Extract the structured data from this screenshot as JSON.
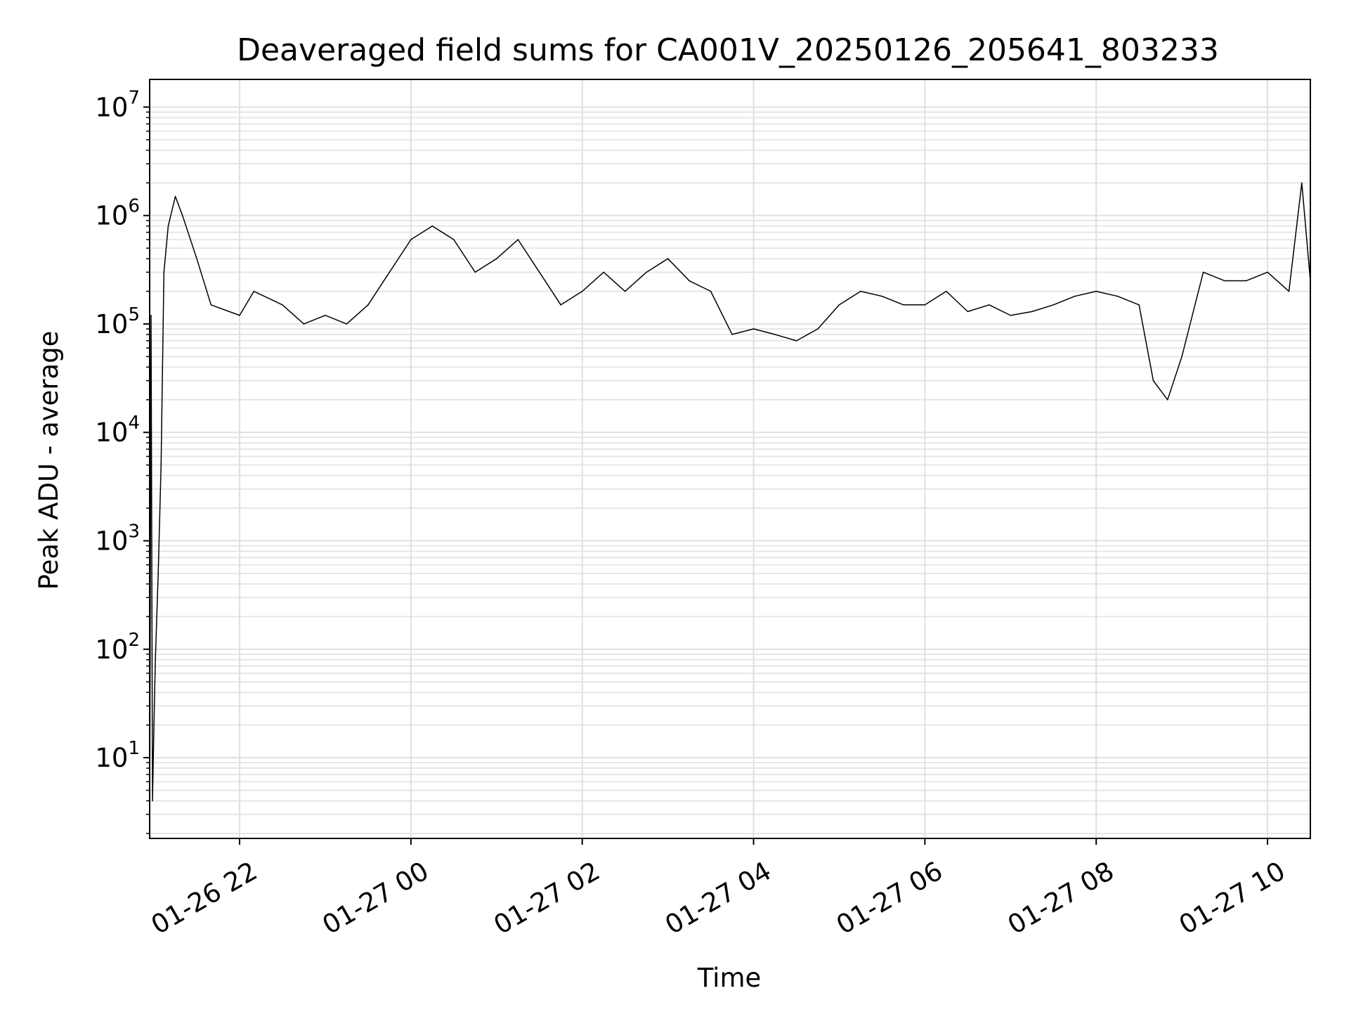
{
  "chart_data": {
    "type": "line",
    "title": "Deaveraged field sums for CA001V_20250126_205641_803233",
    "xlabel": "Time",
    "ylabel": "Peak ADU - average",
    "yscale": "log",
    "grid": "major and minor",
    "xlim": [
      "2025-01-26 20:57",
      "2025-01-27 10:30"
    ],
    "ylim": [
      1.8,
      18000000
    ],
    "x_ticks": [
      {
        "value": "2025-01-26 22:00",
        "label": "01-26 22"
      },
      {
        "value": "2025-01-27 00:00",
        "label": "01-27 00"
      },
      {
        "value": "2025-01-27 02:00",
        "label": "01-27 02"
      },
      {
        "value": "2025-01-27 04:00",
        "label": "01-27 04"
      },
      {
        "value": "2025-01-27 06:00",
        "label": "01-27 06"
      },
      {
        "value": "2025-01-27 08:00",
        "label": "01-27 08"
      },
      {
        "value": "2025-01-27 10:00",
        "label": "01-27 10"
      }
    ],
    "y_ticks": [
      {
        "value": 10,
        "base": "10",
        "exp": "1"
      },
      {
        "value": 100,
        "base": "10",
        "exp": "2"
      },
      {
        "value": 1000,
        "base": "10",
        "exp": "3"
      },
      {
        "value": 10000,
        "base": "10",
        "exp": "4"
      },
      {
        "value": 100000,
        "base": "10",
        "exp": "5"
      },
      {
        "value": 1000000,
        "base": "10",
        "exp": "6"
      },
      {
        "value": 10000000,
        "base": "10",
        "exp": "7"
      }
    ],
    "series": [
      {
        "color": "#000000",
        "x": [
          "2025-01-26 20:57",
          "2025-01-26 20:58",
          "2025-01-26 20:59",
          "2025-01-26 21:00",
          "2025-01-26 21:01",
          "2025-01-26 21:02",
          "2025-01-26 21:03",
          "2025-01-26 21:05",
          "2025-01-26 21:07",
          "2025-01-26 21:10",
          "2025-01-26 21:15",
          "2025-01-26 21:20",
          "2025-01-26 21:30",
          "2025-01-26 21:40",
          "2025-01-26 22:00",
          "2025-01-26 22:10",
          "2025-01-26 22:30",
          "2025-01-26 22:45",
          "2025-01-26 23:00",
          "2025-01-26 23:15",
          "2025-01-26 23:30",
          "2025-01-26 23:45",
          "2025-01-27 00:00",
          "2025-01-27 00:15",
          "2025-01-27 00:30",
          "2025-01-27 00:45",
          "2025-01-27 01:00",
          "2025-01-27 01:15",
          "2025-01-27 01:30",
          "2025-01-27 01:45",
          "2025-01-27 02:00",
          "2025-01-27 02:15",
          "2025-01-27 02:30",
          "2025-01-27 02:45",
          "2025-01-27 03:00",
          "2025-01-27 03:15",
          "2025-01-27 03:30",
          "2025-01-27 03:45",
          "2025-01-27 04:00",
          "2025-01-27 04:15",
          "2025-01-27 04:30",
          "2025-01-27 04:45",
          "2025-01-27 05:00",
          "2025-01-27 05:15",
          "2025-01-27 05:30",
          "2025-01-27 05:45",
          "2025-01-27 06:00",
          "2025-01-27 06:15",
          "2025-01-27 06:30",
          "2025-01-27 06:45",
          "2025-01-27 07:00",
          "2025-01-27 07:15",
          "2025-01-27 07:30",
          "2025-01-27 07:45",
          "2025-01-27 08:00",
          "2025-01-27 08:15",
          "2025-01-27 08:30",
          "2025-01-27 08:40",
          "2025-01-27 08:50",
          "2025-01-27 09:00",
          "2025-01-27 09:15",
          "2025-01-27 09:30",
          "2025-01-27 09:45",
          "2025-01-27 10:00",
          "2025-01-27 10:15",
          "2025-01-27 10:24",
          "2025-01-27 10:30"
        ],
        "y": [
          2,
          120000,
          4,
          20,
          80,
          200,
          500,
          5000,
          300000,
          800000,
          1500000,
          1000000,
          400000,
          150000,
          120000,
          200000,
          150000,
          100000,
          120000,
          100000,
          150000,
          300000,
          600000,
          800000,
          600000,
          300000,
          400000,
          600000,
          300000,
          150000,
          200000,
          300000,
          200000,
          300000,
          400000,
          250000,
          200000,
          80000,
          90000,
          80000,
          70000,
          90000,
          150000,
          200000,
          180000,
          150000,
          150000,
          200000,
          130000,
          150000,
          120000,
          130000,
          150000,
          180000,
          200000,
          180000,
          150000,
          30000,
          20000,
          50000,
          300000,
          250000,
          250000,
          300000,
          200000,
          2000000,
          250000
        ]
      }
    ]
  }
}
